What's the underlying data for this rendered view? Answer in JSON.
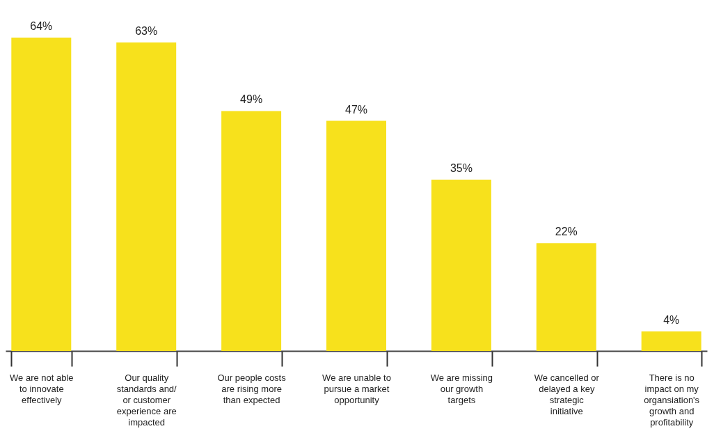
{
  "chart_data": {
    "type": "bar",
    "categories": [
      "We are not able to innovate effectively",
      "Our quality standards and/ or customer experience are impacted",
      "Our people costs are rising more than expected",
      "We are unable to pursue a market opportunity",
      "We are missing our growth targets",
      "We cancelled or delayed a key strategic initiative",
      "There is no impact on my organsiation's growth and profitability"
    ],
    "values": [
      64,
      63,
      49,
      47,
      35,
      22,
      4
    ],
    "value_labels": [
      "64%",
      "63%",
      "49%",
      "47%",
      "35%",
      "22%",
      "4%"
    ],
    "color": "#f7e11c",
    "grid": false
  }
}
